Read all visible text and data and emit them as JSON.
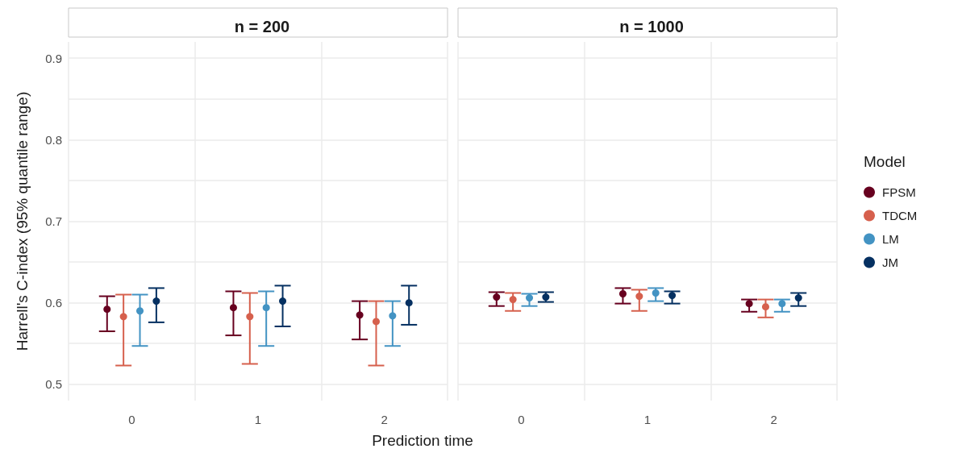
{
  "chart_data": [
    {
      "type": "scatter",
      "title": "n = 200",
      "xlabel": "Prediction time",
      "ylabel": "Harrell's C-index (95% quantile range)",
      "categories": [
        "0",
        "1",
        "2"
      ],
      "ylim": [
        0.48,
        0.92
      ],
      "yticks": [
        0.5,
        {
          "value": 0.55,
          "label": null
        },
        0.6,
        {
          "value": 0.65,
          "label": null
        },
        0.7,
        {
          "value": 0.75,
          "label": null
        },
        0.8,
        {
          "value": 0.85,
          "label": null
        },
        0.9
      ],
      "grid": true,
      "legend": "right",
      "legend_title": "Model",
      "marker": "circle",
      "series": [
        {
          "name": "FPSM",
          "color": "#67001f",
          "values": [
            0.592,
            0.594,
            0.585
          ],
          "errors": [
            [
              0.565,
              0.608
            ],
            [
              0.56,
              0.614
            ],
            [
              0.555,
              0.602
            ]
          ]
        },
        {
          "name": "TDCM",
          "color": "#d6604d",
          "values": [
            0.583,
            0.583,
            0.577
          ],
          "errors": [
            [
              0.523,
              0.61
            ],
            [
              0.525,
              0.612
            ],
            [
              0.523,
              0.602
            ]
          ]
        },
        {
          "name": "LM",
          "color": "#4393c3",
          "values": [
            0.59,
            0.594,
            0.584
          ],
          "errors": [
            [
              0.547,
              0.61
            ],
            [
              0.547,
              0.614
            ],
            [
              0.547,
              0.602
            ]
          ]
        },
        {
          "name": "JM",
          "color": "#053061",
          "values": [
            0.602,
            0.602,
            0.6
          ],
          "errors": [
            [
              0.576,
              0.618
            ],
            [
              0.571,
              0.621
            ],
            [
              0.573,
              0.621
            ]
          ]
        }
      ]
    },
    {
      "type": "scatter",
      "title": "n = 1000",
      "categories": [
        "0",
        "1",
        "2"
      ],
      "ylim": [
        0.48,
        0.92
      ],
      "yticks": [
        0.5,
        {
          "value": 0.55,
          "label": null
        },
        0.6,
        {
          "value": 0.65,
          "label": null
        },
        0.7,
        {
          "value": 0.75,
          "label": null
        },
        0.8,
        {
          "value": 0.85,
          "label": null
        },
        0.9
      ],
      "grid": true,
      "tick_labels": "x",
      "marker": "circle",
      "series": [
        {
          "color": "#67001f",
          "values": [
            0.607,
            0.611,
            0.599
          ],
          "errors": [
            [
              0.596,
              0.613
            ],
            [
              0.599,
              0.618
            ],
            [
              0.589,
              0.604
            ]
          ]
        },
        {
          "color": "#d6604d",
          "values": [
            0.604,
            0.608,
            0.595
          ],
          "errors": [
            [
              0.59,
              0.612
            ],
            [
              0.59,
              0.616
            ],
            [
              0.582,
              0.604
            ]
          ]
        },
        {
          "color": "#4393c3",
          "values": [
            0.606,
            0.612,
            0.599
          ],
          "errors": [
            [
              0.596,
              0.611
            ],
            [
              0.602,
              0.618
            ],
            [
              0.589,
              0.604
            ]
          ]
        },
        {
          "color": "#053061",
          "values": [
            0.607,
            0.609,
            0.606
          ],
          "errors": [
            [
              0.601,
              0.613
            ],
            [
              0.599,
              0.614
            ],
            [
              0.596,
              0.612
            ]
          ]
        }
      ]
    }
  ]
}
